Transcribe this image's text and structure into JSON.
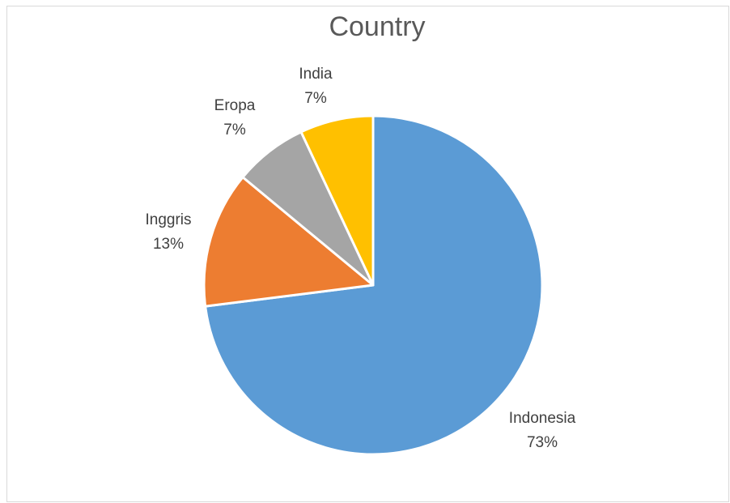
{
  "chart_data": {
    "type": "pie",
    "title": "Country",
    "start_angle_deg": 0,
    "direction": "clockwise",
    "slices": [
      {
        "label": "Indonesia",
        "value": 73,
        "percent_label": "73%",
        "color": "#5b9bd5"
      },
      {
        "label": "Inggris",
        "value": 13,
        "percent_label": "13%",
        "color": "#ed7d31"
      },
      {
        "label": "Eropa",
        "value": 7,
        "percent_label": "7%",
        "color": "#a5a5a5"
      },
      {
        "label": "India",
        "value": 7,
        "percent_label": "7%",
        "color": "#ffc000"
      }
    ]
  }
}
